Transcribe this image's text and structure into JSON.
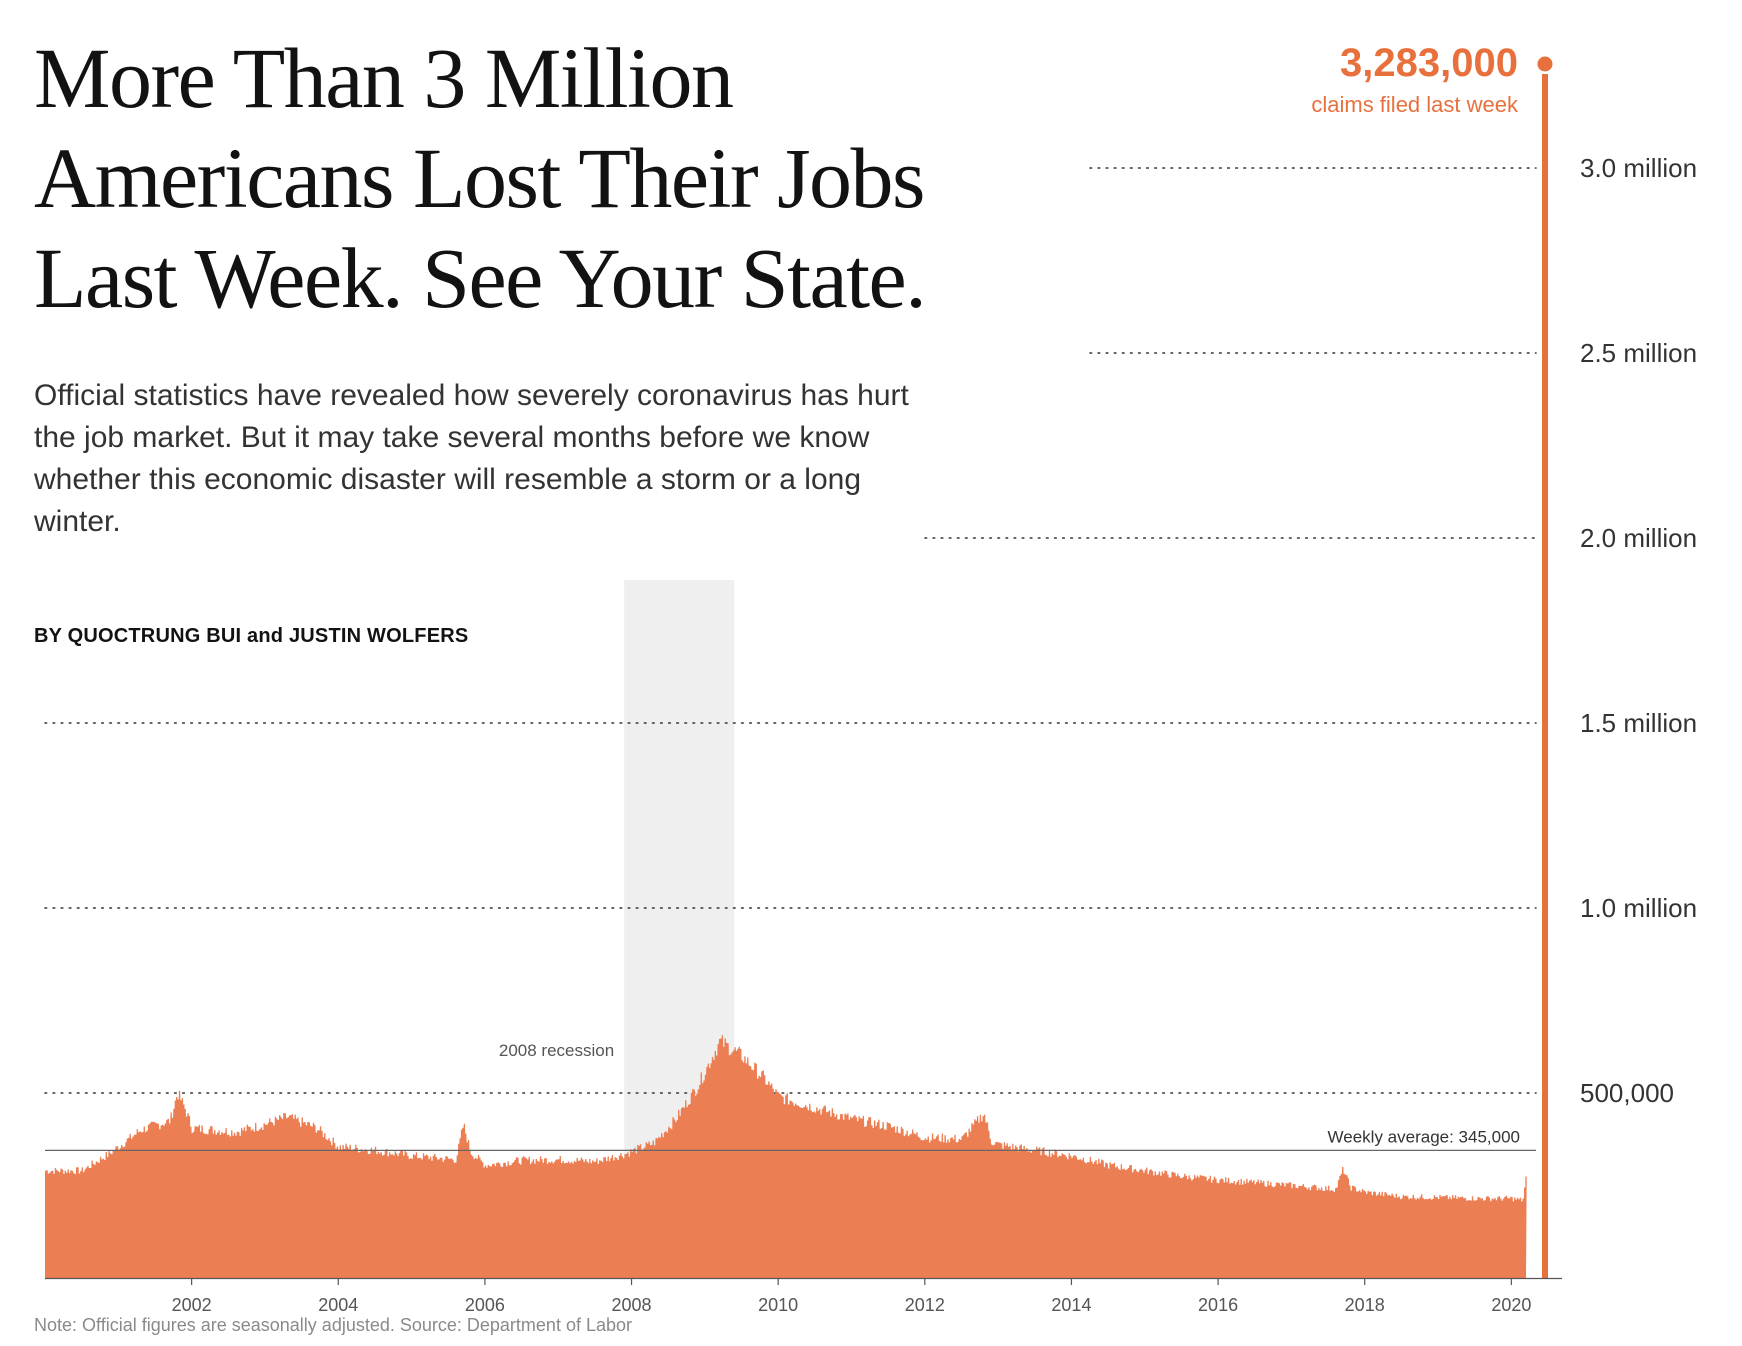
{
  "headline": "More Than 3 Million Americans Lost Their Jobs Last Week. See Your State.",
  "dek": "Official statistics have revealed how severely coronavirus has hurt the job market. But it may take several months before we know whether this economic disaster will resemble a storm or a long winter.",
  "byline": "BY QUOCTRUNG BUI and JUSTIN WOLFERS",
  "note": "Note: Official figures are seasonally adjusted. Source: Department of Labor",
  "colors": {
    "bars": "#ec7e53",
    "highlight": "#e8703d",
    "recession": "#efefef",
    "text": "#121212"
  },
  "chart_data": {
    "type": "bar",
    "x_unit": "year",
    "xlim": [
      2000,
      2020.5
    ],
    "ylim": [
      0,
      3283000
    ],
    "x_ticks": [
      2002,
      2004,
      2006,
      2008,
      2010,
      2012,
      2014,
      2016,
      2018,
      2020
    ],
    "x_tick_labels": [
      "2002",
      "2004",
      "2006",
      "2008",
      "2010",
      "2012",
      "2014",
      "2016",
      "2018",
      "2020"
    ],
    "y_ticks": [
      500000,
      1000000,
      1500000,
      2000000,
      2500000,
      3000000
    ],
    "y_tick_labels": [
      "500,000",
      "1.0 million",
      "1.5 million",
      "2.0 million",
      "2.5 million",
      "3.0 million"
    ],
    "grid": "dotted horizontal",
    "weekly_claims_profile": [
      [
        2000.0,
        290000
      ],
      [
        2000.5,
        290000
      ],
      [
        2000.9,
        340000
      ],
      [
        2001.3,
        400000
      ],
      [
        2001.7,
        425000
      ],
      [
        2001.8,
        500000
      ],
      [
        2001.9,
        460000
      ],
      [
        2002.0,
        405000
      ],
      [
        2002.3,
        400000
      ],
      [
        2002.6,
        395000
      ],
      [
        2002.9,
        410000
      ],
      [
        2003.3,
        435000
      ],
      [
        2003.7,
        405000
      ],
      [
        2004.0,
        355000
      ],
      [
        2004.5,
        345000
      ],
      [
        2005.0,
        330000
      ],
      [
        2005.6,
        320000
      ],
      [
        2005.7,
        415000
      ],
      [
        2005.8,
        340000
      ],
      [
        2006.0,
        305000
      ],
      [
        2006.5,
        318000
      ],
      [
        2007.0,
        320000
      ],
      [
        2007.5,
        315000
      ],
      [
        2007.9,
        335000
      ],
      [
        2008.3,
        365000
      ],
      [
        2008.6,
        430000
      ],
      [
        2008.9,
        520000
      ],
      [
        2009.2,
        640000
      ],
      [
        2009.5,
        600000
      ],
      [
        2009.8,
        540000
      ],
      [
        2010.0,
        490000
      ],
      [
        2010.5,
        460000
      ],
      [
        2011.0,
        430000
      ],
      [
        2011.5,
        410000
      ],
      [
        2012.0,
        380000
      ],
      [
        2012.5,
        375000
      ],
      [
        2012.8,
        445000
      ],
      [
        2012.9,
        370000
      ],
      [
        2013.0,
        360000
      ],
      [
        2013.5,
        345000
      ],
      [
        2014.0,
        330000
      ],
      [
        2014.5,
        305000
      ],
      [
        2015.0,
        290000
      ],
      [
        2015.5,
        275000
      ],
      [
        2016.0,
        265000
      ],
      [
        2016.5,
        258000
      ],
      [
        2017.0,
        250000
      ],
      [
        2017.6,
        240000
      ],
      [
        2017.7,
        295000
      ],
      [
        2017.8,
        245000
      ],
      [
        2018.0,
        232000
      ],
      [
        2018.5,
        220000
      ],
      [
        2019.0,
        218000
      ],
      [
        2019.5,
        215000
      ],
      [
        2020.0,
        215000
      ],
      [
        2020.15,
        210000
      ],
      [
        2020.2,
        280000
      ]
    ],
    "highlight": {
      "x": 2020.23,
      "value": 3283000,
      "value_label": "3,283,000",
      "label": "claims filed last week"
    },
    "recession": {
      "start": 2007.9,
      "end": 2009.4,
      "label": "2008 recession"
    },
    "average": {
      "value": 345000,
      "label": "Weekly average: 345,000"
    }
  }
}
